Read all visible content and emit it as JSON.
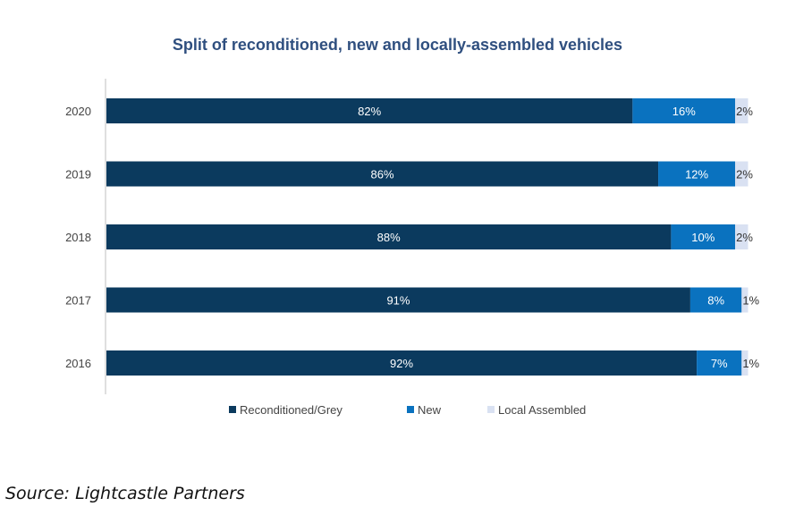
{
  "chart_data": {
    "type": "bar",
    "orientation": "horizontal",
    "stacked": true,
    "title": "Split of reconditioned, new and locally-assembled vehicles",
    "categories": [
      "2020",
      "2019",
      "2018",
      "2017",
      "2016"
    ],
    "series": [
      {
        "name": "Reconditioned/Grey",
        "values": [
          82,
          86,
          88,
          91,
          92
        ],
        "labels": [
          "82%",
          "86%",
          "88%",
          "91%",
          "92%"
        ],
        "color": "#0b3a5e"
      },
      {
        "name": "New",
        "values": [
          16,
          12,
          10,
          8,
          7
        ],
        "labels": [
          "16%",
          "12%",
          "10%",
          "8%",
          "7%"
        ],
        "color": "#0a72bf"
      },
      {
        "name": "Local Assembled",
        "values": [
          2,
          2,
          2,
          1,
          1
        ],
        "labels": [
          "2%",
          "2%",
          "2%",
          "1%",
          "1%"
        ],
        "color": "#d9e1f2"
      }
    ],
    "legend_position": "bottom",
    "grid": false
  },
  "source": "Source: Lightcastle Partners"
}
